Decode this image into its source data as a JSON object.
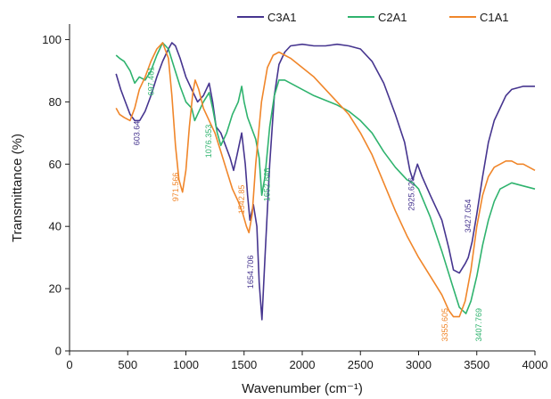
{
  "chart_data": {
    "type": "line",
    "xlabel": "Wavenumber (cm⁻¹)",
    "ylabel": "Transmittance (%)",
    "xlim": [
      0,
      4000
    ],
    "ylim": [
      0,
      105
    ],
    "xticks": [
      0,
      500,
      1000,
      1500,
      2000,
      2500,
      3000,
      3500,
      4000
    ],
    "yticks": [
      0,
      20,
      40,
      60,
      80,
      100
    ],
    "grid": false,
    "legend": "top-right",
    "series": [
      {
        "name": "C3A1",
        "color": "#46358f",
        "points": [
          [
            400,
            89
          ],
          [
            440,
            84
          ],
          [
            480,
            80
          ],
          [
            520,
            76
          ],
          [
            560,
            74
          ],
          [
            603,
            74
          ],
          [
            650,
            77
          ],
          [
            700,
            82
          ],
          [
            750,
            88
          ],
          [
            800,
            93
          ],
          [
            850,
            97
          ],
          [
            880,
            99
          ],
          [
            910,
            98
          ],
          [
            950,
            94
          ],
          [
            1000,
            88
          ],
          [
            1050,
            84
          ],
          [
            1100,
            80
          ],
          [
            1150,
            82
          ],
          [
            1200,
            86
          ],
          [
            1230,
            80
          ],
          [
            1260,
            72
          ],
          [
            1300,
            70
          ],
          [
            1340,
            66
          ],
          [
            1380,
            62
          ],
          [
            1410,
            58
          ],
          [
            1440,
            63
          ],
          [
            1480,
            70
          ],
          [
            1510,
            60
          ],
          [
            1530,
            50
          ],
          [
            1550,
            42
          ],
          [
            1580,
            47
          ],
          [
            1610,
            40
          ],
          [
            1630,
            22
          ],
          [
            1654,
            10
          ],
          [
            1680,
            30
          ],
          [
            1720,
            60
          ],
          [
            1760,
            82
          ],
          [
            1800,
            92
          ],
          [
            1850,
            96
          ],
          [
            1900,
            98
          ],
          [
            2000,
            98.5
          ],
          [
            2100,
            98
          ],
          [
            2200,
            98
          ],
          [
            2300,
            98.5
          ],
          [
            2400,
            98
          ],
          [
            2500,
            97
          ],
          [
            2600,
            93
          ],
          [
            2700,
            86
          ],
          [
            2800,
            76
          ],
          [
            2880,
            67
          ],
          [
            2925,
            58
          ],
          [
            2950,
            55
          ],
          [
            2990,
            60
          ],
          [
            3030,
            56
          ],
          [
            3100,
            50
          ],
          [
            3200,
            42
          ],
          [
            3260,
            33
          ],
          [
            3300,
            26
          ],
          [
            3350,
            25
          ],
          [
            3400,
            28
          ],
          [
            3427,
            30
          ],
          [
            3460,
            35
          ],
          [
            3500,
            44
          ],
          [
            3550,
            56
          ],
          [
            3600,
            67
          ],
          [
            3650,
            74
          ],
          [
            3700,
            78
          ],
          [
            3750,
            82
          ],
          [
            3800,
            84
          ],
          [
            3900,
            85
          ],
          [
            4000,
            85
          ]
        ]
      },
      {
        "name": "C2A1",
        "color": "#2fb36e",
        "points": [
          [
            400,
            95
          ],
          [
            430,
            94
          ],
          [
            470,
            93
          ],
          [
            520,
            90
          ],
          [
            560,
            86
          ],
          [
            600,
            88
          ],
          [
            650,
            87
          ],
          [
            700,
            90
          ],
          [
            750,
            95
          ],
          [
            800,
            99
          ],
          [
            850,
            97
          ],
          [
            900,
            91
          ],
          [
            950,
            85
          ],
          [
            1000,
            80
          ],
          [
            1050,
            78
          ],
          [
            1076,
            74
          ],
          [
            1100,
            76
          ],
          [
            1150,
            80
          ],
          [
            1200,
            83
          ],
          [
            1230,
            78
          ],
          [
            1270,
            70
          ],
          [
            1300,
            66
          ],
          [
            1350,
            70
          ],
          [
            1400,
            76
          ],
          [
            1450,
            80
          ],
          [
            1480,
            85
          ],
          [
            1500,
            80
          ],
          [
            1530,
            75
          ],
          [
            1560,
            72
          ],
          [
            1600,
            68
          ],
          [
            1630,
            62
          ],
          [
            1652,
            50
          ],
          [
            1680,
            56
          ],
          [
            1720,
            72
          ],
          [
            1760,
            82
          ],
          [
            1800,
            87
          ],
          [
            1850,
            87
          ],
          [
            1900,
            86
          ],
          [
            2000,
            84
          ],
          [
            2100,
            82
          ],
          [
            2200,
            80.5
          ],
          [
            2300,
            79
          ],
          [
            2400,
            77
          ],
          [
            2500,
            74
          ],
          [
            2600,
            70
          ],
          [
            2700,
            64
          ],
          [
            2800,
            59
          ],
          [
            2900,
            55
          ],
          [
            2950,
            54
          ],
          [
            3000,
            52
          ],
          [
            3100,
            43
          ],
          [
            3200,
            32
          ],
          [
            3300,
            20
          ],
          [
            3350,
            14
          ],
          [
            3407,
            12
          ],
          [
            3450,
            16
          ],
          [
            3500,
            24
          ],
          [
            3550,
            34
          ],
          [
            3600,
            42
          ],
          [
            3650,
            48
          ],
          [
            3700,
            52
          ],
          [
            3800,
            54
          ],
          [
            3900,
            53
          ],
          [
            4000,
            52
          ]
        ]
      },
      {
        "name": "C1A1",
        "color": "#f0862a",
        "points": [
          [
            400,
            78
          ],
          [
            430,
            76
          ],
          [
            470,
            75
          ],
          [
            520,
            74
          ],
          [
            560,
            78
          ],
          [
            600,
            84
          ],
          [
            650,
            88
          ],
          [
            700,
            93
          ],
          [
            750,
            97
          ],
          [
            800,
            99
          ],
          [
            850,
            94
          ],
          [
            880,
            82
          ],
          [
            910,
            66
          ],
          [
            940,
            55
          ],
          [
            971,
            51
          ],
          [
            1000,
            58
          ],
          [
            1030,
            72
          ],
          [
            1060,
            83
          ],
          [
            1080,
            87
          ],
          [
            1110,
            84
          ],
          [
            1150,
            78
          ],
          [
            1200,
            74
          ],
          [
            1250,
            70
          ],
          [
            1300,
            64
          ],
          [
            1350,
            58
          ],
          [
            1400,
            52
          ],
          [
            1450,
            48
          ],
          [
            1490,
            44
          ],
          [
            1520,
            40
          ],
          [
            1542,
            38
          ],
          [
            1570,
            44
          ],
          [
            1600,
            60
          ],
          [
            1650,
            80
          ],
          [
            1700,
            91
          ],
          [
            1750,
            95
          ],
          [
            1800,
            96
          ],
          [
            1850,
            95
          ],
          [
            1900,
            94
          ],
          [
            2000,
            91
          ],
          [
            2100,
            88
          ],
          [
            2200,
            84
          ],
          [
            2300,
            80
          ],
          [
            2400,
            76
          ],
          [
            2500,
            70
          ],
          [
            2600,
            63
          ],
          [
            2700,
            54
          ],
          [
            2800,
            45
          ],
          [
            2900,
            37
          ],
          [
            3000,
            30
          ],
          [
            3100,
            24
          ],
          [
            3200,
            18
          ],
          [
            3260,
            13
          ],
          [
            3300,
            11
          ],
          [
            3350,
            11
          ],
          [
            3400,
            16
          ],
          [
            3450,
            26
          ],
          [
            3500,
            40
          ],
          [
            3550,
            50
          ],
          [
            3600,
            56
          ],
          [
            3650,
            59
          ],
          [
            3700,
            60
          ],
          [
            3750,
            61
          ],
          [
            3800,
            61
          ],
          [
            3850,
            60
          ],
          [
            3900,
            60
          ],
          [
            4000,
            58
          ]
        ]
      }
    ],
    "annotations": [
      {
        "text": "603.64",
        "x": 603,
        "y": 66,
        "color": "#46358f"
      },
      {
        "text": "697.461",
        "x": 725,
        "y": 82,
        "color": "#2fb36e"
      },
      {
        "text": "971.566",
        "x": 935,
        "y": 48,
        "color": "#f0862a"
      },
      {
        "text": "1076.353",
        "x": 1220,
        "y": 62,
        "color": "#2fb36e"
      },
      {
        "text": "1542.85",
        "x": 1500,
        "y": 44,
        "color": "#f0862a"
      },
      {
        "text": "1652.846",
        "x": 1720,
        "y": 48,
        "color": "#2fb36e"
      },
      {
        "text": "1654.706",
        "x": 1580,
        "y": 20,
        "color": "#46358f"
      },
      {
        "text": "2925.626",
        "x": 2960,
        "y": 45,
        "color": "#46358f"
      },
      {
        "text": "3427.054",
        "x": 3450,
        "y": 38,
        "color": "#46358f"
      },
      {
        "text": "3355.605",
        "x": 3250,
        "y": 3,
        "color": "#f0862a"
      },
      {
        "text": "3407.769",
        "x": 3540,
        "y": 3,
        "color": "#2fb36e"
      }
    ]
  }
}
